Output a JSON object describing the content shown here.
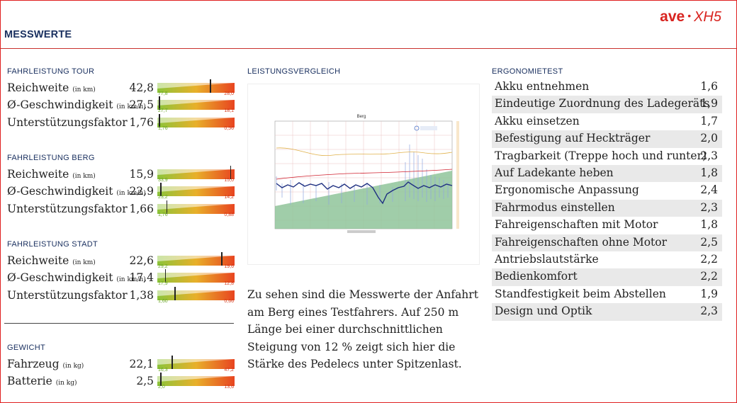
{
  "header": {
    "brand_main": "ave",
    "brand_sep": "•",
    "brand_model": "XH5",
    "title": "MESSWERTE"
  },
  "tour": {
    "heading": "FAHRLEISTUNG TOUR",
    "rows": [
      {
        "label": "Reichweite",
        "unit": "(in km)",
        "value": "42,8",
        "min": "77,8",
        "max": "28,0",
        "marker": 0.7
      },
      {
        "label": "Ø-Geschwindigkeit",
        "unit": "(in km/h)",
        "value": "27,5",
        "min": "27,7",
        "max": "18,1",
        "marker": 0.02
      },
      {
        "label": "Unterstützungsfaktor",
        "unit": "",
        "value": "1,76",
        "min": "1,76",
        "max": "0,56",
        "marker": 0.02
      }
    ]
  },
  "berg": {
    "heading": "FAHRLEISTUNG BERG",
    "rows": [
      {
        "label": "Reichweite",
        "unit": "(in km)",
        "value": "15,9",
        "min": "33,9",
        "max": "15,0",
        "marker": 0.97
      },
      {
        "label": "Ø-Geschwindigkeit",
        "unit": "(in km/h)",
        "value": "22,9",
        "min": "23,2",
        "max": "14,2",
        "marker": 0.04
      },
      {
        "label": "Unterstützungsfaktor",
        "unit": "",
        "value": "1,66",
        "min": "1,76",
        "max": "0,88",
        "marker": 0.12
      }
    ]
  },
  "stadt": {
    "heading": "FAHRLEISTUNG STADT",
    "rows": [
      {
        "label": "Reichweite",
        "unit": "(in km)",
        "value": "22,6",
        "min": "29,2",
        "max": "19,6",
        "marker": 0.85
      },
      {
        "label": "Ø-Geschwindigkeit",
        "unit": "(in km/h)",
        "value": "17,4",
        "min": "17,9",
        "max": "12,8",
        "marker": 0.1
      },
      {
        "label": "Unterstützungsfaktor",
        "unit": "",
        "value": "1,38",
        "min": "1,60",
        "max": "0,66",
        "marker": 0.23
      }
    ]
  },
  "gewicht": {
    "heading": "GEWICHT",
    "rows": [
      {
        "label": "Fahrzeug",
        "unit": "(in kg)",
        "value": "22,1",
        "min": "16,3",
        "max": "47,2",
        "marker": 0.19
      },
      {
        "label": "Batterie",
        "unit": "(in kg)",
        "value": "2,5",
        "min": "2,0",
        "max": "13,6",
        "marker": 0.04
      }
    ]
  },
  "vergleich": {
    "heading": "LEISTUNGSVERGLEICH",
    "chart_title": "Berg",
    "description": "Zu sehen sind die Messwerte der Anfahrt am Berg eines Testfahrers. Auf 250 m Länge bei einer durchschnittlichen Steigung von 12 % zeigt sich hier die Stärke des Pedelecs unter Spitzenlast."
  },
  "ergonomie": {
    "heading": "ERGONOMIETEST",
    "rows": [
      {
        "label": "Akku entnehmen",
        "value": "1,6"
      },
      {
        "label": "Eindeutige Zuordnung des Ladegeräts",
        "value": "1,9"
      },
      {
        "label": "Akku einsetzen",
        "value": "1,7"
      },
      {
        "label": "Befestigung auf Heckträger",
        "value": "2,0"
      },
      {
        "label": "Tragbarkeit (Treppe hoch und runter)",
        "value": "2,3"
      },
      {
        "label": "Auf Ladekante heben",
        "value": "1,8"
      },
      {
        "label": "Ergonomische Anpassung",
        "value": "2,4"
      },
      {
        "label": "Fahrmodus einstellen",
        "value": "2,3"
      },
      {
        "label": "Fahreigenschaften mit Motor",
        "value": "1,8"
      },
      {
        "label": "Fahreigenschaften ohne Motor",
        "value": "2,5"
      },
      {
        "label": "Antriebslautstärke",
        "value": "2,2"
      },
      {
        "label": "Bedienkomfort",
        "value": "2,2"
      },
      {
        "label": "Standfestigkeit beim Abstellen",
        "value": "1,9"
      },
      {
        "label": "Design und Optik",
        "value": "2,3"
      }
    ]
  }
}
